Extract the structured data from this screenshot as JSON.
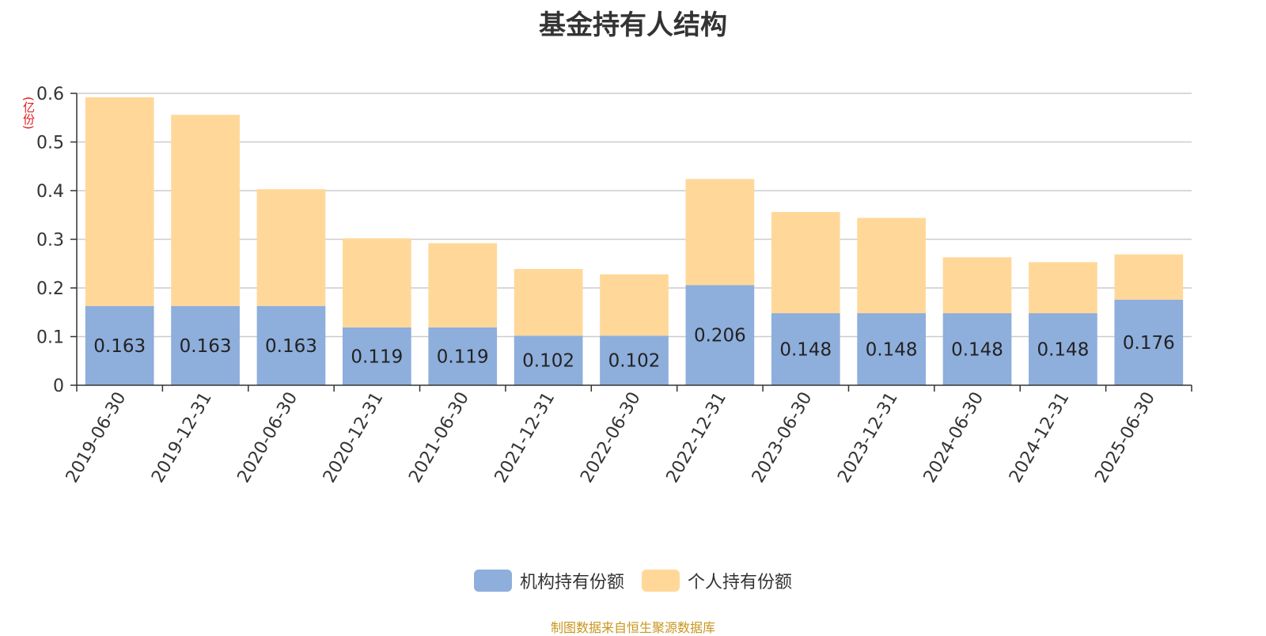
{
  "chart_data": {
    "type": "bar",
    "stacked": true,
    "title": "基金持有人结构",
    "unit_label": "(亿份)",
    "categories": [
      "2019-06-30",
      "2019-12-31",
      "2020-06-30",
      "2020-12-31",
      "2021-06-30",
      "2021-12-31",
      "2022-06-30",
      "2022-12-31",
      "2023-06-30",
      "2023-12-31",
      "2024-06-30",
      "2024-12-31",
      "2025-06-30"
    ],
    "series": [
      {
        "name": "机构持有份额",
        "color": "#8eaedc",
        "values": [
          0.163,
          0.163,
          0.163,
          0.119,
          0.119,
          0.102,
          0.102,
          0.206,
          0.148,
          0.148,
          0.148,
          0.148,
          0.176
        ],
        "labels": [
          "0.163",
          "0.163",
          "0.163",
          "0.119",
          "0.119",
          "0.102",
          "0.102",
          "0.206",
          "0.148",
          "0.148",
          "0.148",
          "0.148",
          "0.176"
        ]
      },
      {
        "name": "个人持有份额",
        "color": "#ffd899",
        "values": [
          0.429,
          0.393,
          0.24,
          0.183,
          0.173,
          0.137,
          0.126,
          0.218,
          0.208,
          0.196,
          0.115,
          0.105,
          0.093
        ]
      }
    ],
    "y_ticks": [
      "0",
      "0.1",
      "0.2",
      "0.3",
      "0.4",
      "0.5",
      "0.6"
    ],
    "ylim": [
      0,
      0.6
    ],
    "grid": true,
    "legend_position": "bottom-center"
  },
  "source_text": "制图数据来自恒生聚源数据库"
}
